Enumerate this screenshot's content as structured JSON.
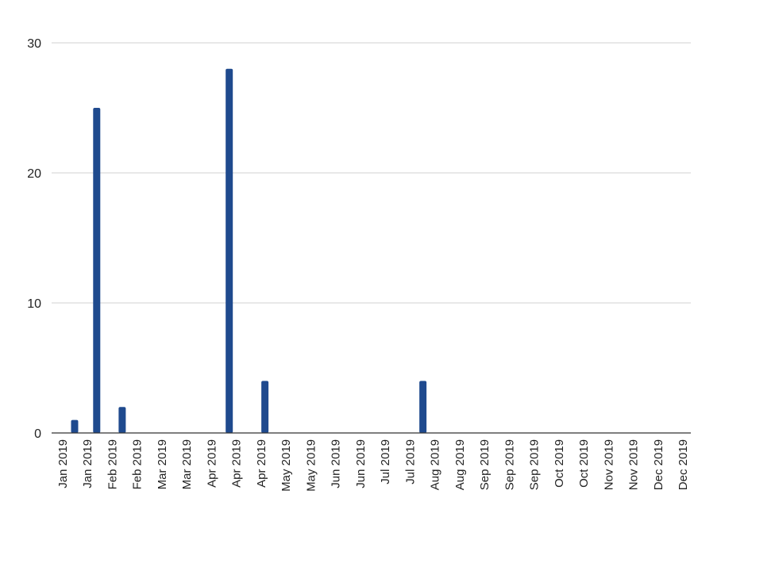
{
  "chart_data": {
    "type": "bar",
    "title": "",
    "xlabel": "",
    "ylabel": "",
    "ylim": [
      0,
      30
    ],
    "yticks": [
      0,
      10,
      20,
      30
    ],
    "grid": true,
    "bar_color": "#1f4a8e",
    "categories": [
      "Jan 2019",
      "Jan 2019",
      "Feb 2019",
      "Feb 2019",
      "Mar 2019",
      "Mar 2019",
      "Apr 2019",
      "Apr 2019",
      "Apr 2019",
      "May 2019",
      "May 2019",
      "Jun 2019",
      "Jun 2019",
      "Jul 2019",
      "Jul 2019",
      "Aug 2019",
      "Aug 2019",
      "Sep 2019",
      "Sep 2019",
      "Sep 2019",
      "Oct 2019",
      "Oct 2019",
      "Nov 2019",
      "Nov 2019",
      "Dec 2019",
      "Dec 2019"
    ],
    "bars": [
      {
        "date": "2019-01-08",
        "value": 1
      },
      {
        "date": "2019-01-21",
        "value": 25
      },
      {
        "date": "2019-02-05",
        "value": 2
      },
      {
        "date": "2019-04-09",
        "value": 28
      },
      {
        "date": "2019-04-30",
        "value": 4
      },
      {
        "date": "2019-08-01",
        "value": 4
      }
    ]
  }
}
